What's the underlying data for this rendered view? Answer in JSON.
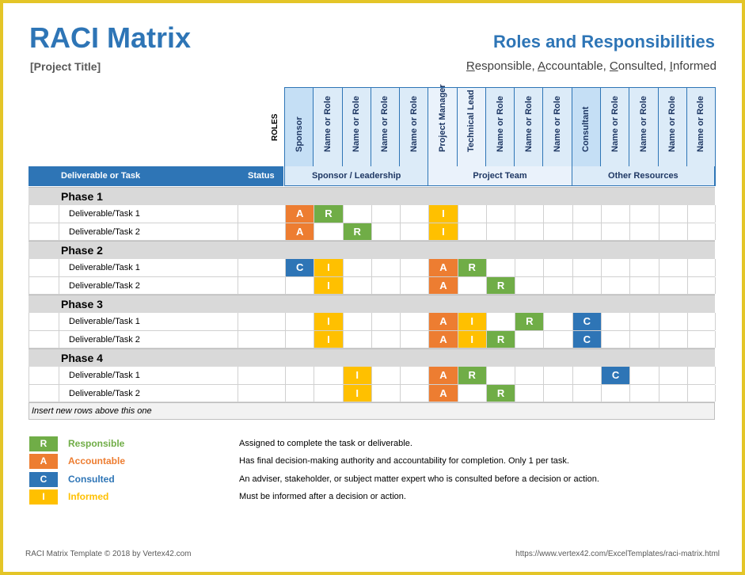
{
  "header": {
    "title": "RACI Matrix",
    "project_title": "[Project Title]",
    "roles_title": "Roles and Responsibilities",
    "raci_words": [
      {
        "letter": "R",
        "rest": "esponsible, "
      },
      {
        "letter": "A",
        "rest": "ccountable, "
      },
      {
        "letter": "C",
        "rest": "onsulted, "
      },
      {
        "letter": "I",
        "rest": "nformed"
      }
    ]
  },
  "table": {
    "roles_label": "ROLES",
    "col_task": "Deliverable or Task",
    "col_status": "Status",
    "roles": [
      "Sponsor",
      "Name or Role",
      "Name or Role",
      "Name or Role",
      "Name or Role",
      "Project Manager",
      "Technical Lead",
      "Name or Role",
      "Name or Role",
      "Name or Role",
      "Consultant",
      "Name or Role",
      "Name or Role",
      "Name or Role",
      "Name or Role"
    ],
    "groups": [
      {
        "label": "Sponsor / Leadership",
        "span": 5
      },
      {
        "label": "Project Team",
        "span": 5
      },
      {
        "label": "Other Resources",
        "span": 5
      }
    ],
    "phases": [
      {
        "name": "Phase 1",
        "tasks": [
          {
            "name": "Deliverable/Task 1",
            "cells": [
              "A",
              "R",
              "",
              "",
              "",
              "I",
              "",
              "",
              "",
              "",
              "",
              "",
              "",
              "",
              ""
            ]
          },
          {
            "name": "Deliverable/Task 2",
            "cells": [
              "A",
              "",
              "R",
              "",
              "",
              "I",
              "",
              "",
              "",
              "",
              "",
              "",
              "",
              "",
              ""
            ]
          }
        ]
      },
      {
        "name": "Phase 2",
        "tasks": [
          {
            "name": "Deliverable/Task 1",
            "cells": [
              "C",
              "I",
              "",
              "",
              "",
              "A",
              "R",
              "",
              "",
              "",
              "",
              "",
              "",
              "",
              ""
            ]
          },
          {
            "name": "Deliverable/Task 2",
            "cells": [
              "",
              "I",
              "",
              "",
              "",
              "A",
              "",
              "R",
              "",
              "",
              "",
              "",
              "",
              "",
              ""
            ]
          }
        ]
      },
      {
        "name": "Phase 3",
        "tasks": [
          {
            "name": "Deliverable/Task 1",
            "cells": [
              "",
              "I",
              "",
              "",
              "",
              "A",
              "I",
              "",
              "R",
              "",
              "C",
              "",
              "",
              "",
              ""
            ]
          },
          {
            "name": "Deliverable/Task 2",
            "cells": [
              "",
              "I",
              "",
              "",
              "",
              "A",
              "I",
              "R",
              "",
              "",
              "C",
              "",
              "",
              "",
              ""
            ]
          }
        ]
      },
      {
        "name": "Phase 4",
        "tasks": [
          {
            "name": "Deliverable/Task 1",
            "cells": [
              "",
              "",
              "I",
              "",
              "",
              "A",
              "R",
              "",
              "",
              "",
              "",
              "C",
              "",
              "",
              ""
            ]
          },
          {
            "name": "Deliverable/Task 2",
            "cells": [
              "",
              "",
              "I",
              "",
              "",
              "A",
              "",
              "R",
              "",
              "",
              "",
              "",
              "",
              "",
              ""
            ]
          }
        ]
      }
    ],
    "insert_note": "Insert new rows above this one"
  },
  "legend": [
    {
      "letter": "R",
      "label": "Responsible",
      "color": "#70ad47",
      "desc": "Assigned to complete the task or deliverable."
    },
    {
      "letter": "A",
      "label": "Accountable",
      "color": "#ed7d31",
      "desc": "Has final decision-making authority and accountability for completion. Only 1 per task."
    },
    {
      "letter": "C",
      "label": "Consulted",
      "color": "#2e75b6",
      "desc": "An adviser, stakeholder, or subject matter expert who is consulted before a decision or action."
    },
    {
      "letter": "I",
      "label": "Informed",
      "color": "#ffc000",
      "desc": "Must be informed after a decision or action."
    }
  ],
  "footer": {
    "left": "RACI Matrix Template © 2018 by Vertex42.com",
    "right": "https://www.vertex42.com/ExcelTemplates/raci-matrix.html"
  },
  "colors": {
    "accent": "#2e75b6",
    "frame": "#e4c527"
  }
}
